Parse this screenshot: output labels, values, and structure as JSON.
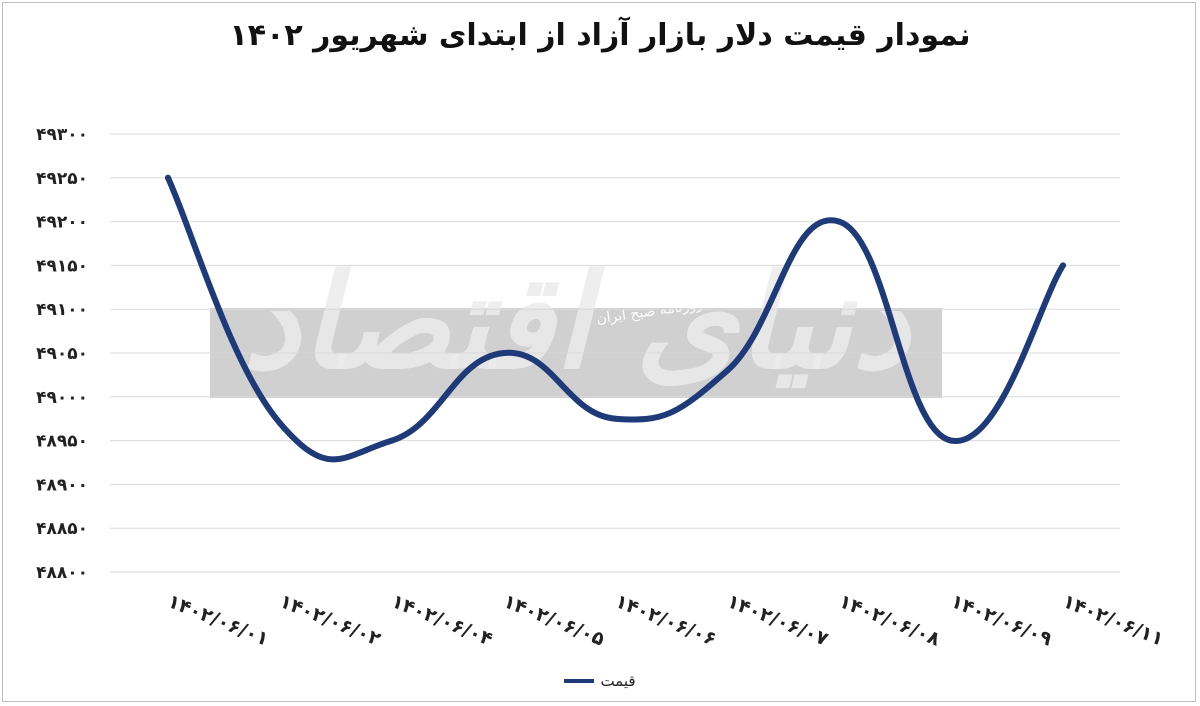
{
  "chart_data": {
    "type": "line",
    "title": "نمودار قیمت دلار بازار آزاد از ابتدای شهریور ۱۴۰۲",
    "categories": [
      "۱۴۰۲/۰۶/۰۱",
      "۱۴۰۲/۰۶/۰۲",
      "۱۴۰۲/۰۶/۰۴",
      "۱۴۰۲/۰۶/۰۵",
      "۱۴۰۲/۰۶/۰۶",
      "۱۴۰۲/۰۶/۰۷",
      "۱۴۰۲/۰۶/۰۸",
      "۱۴۰۲/۰۶/۰۹",
      "۱۴۰۲/۰۶/۱۱"
    ],
    "series": [
      {
        "name": "قیمت",
        "values": [
          49250,
          48970,
          48950,
          49050,
          48975,
          49030,
          49200,
          48950,
          49150
        ]
      }
    ],
    "ylim": [
      48800,
      49300
    ],
    "yticks": [
      49300,
      49250,
      49200,
      49150,
      49100,
      49050,
      49000,
      48950,
      48900,
      48850,
      48800
    ],
    "ytick_labels": [
      "۴۹۳۰۰",
      "۴۹۲۵۰",
      "۴۹۲۰۰",
      "۴۹۱۵۰",
      "۴۹۱۰۰",
      "۴۹۰۵۰",
      "۴۹۰۰۰",
      "۴۸۹۵۰",
      "۴۸۹۰۰",
      "۴۸۸۵۰",
      "۴۸۸۰۰"
    ],
    "grid": true,
    "legend": "bottom",
    "line_color": "#1f3a78",
    "grid_color": "#d9d9d9"
  },
  "watermark": {
    "logo_text": "دنیای اقتصاد",
    "small_text": "روزنامه صبح ایران"
  }
}
